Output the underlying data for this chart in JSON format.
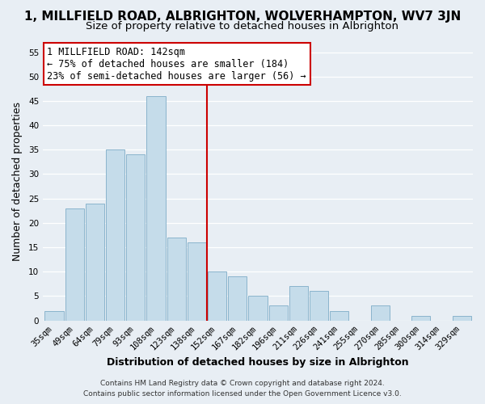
{
  "title": "1, MILLFIELD ROAD, ALBRIGHTON, WOLVERHAMPTON, WV7 3JN",
  "subtitle": "Size of property relative to detached houses in Albrighton",
  "xlabel": "Distribution of detached houses by size in Albrighton",
  "ylabel": "Number of detached properties",
  "footer_line1": "Contains HM Land Registry data © Crown copyright and database right 2024.",
  "footer_line2": "Contains public sector information licensed under the Open Government Licence v3.0.",
  "bar_labels": [
    "35sqm",
    "49sqm",
    "64sqm",
    "79sqm",
    "93sqm",
    "108sqm",
    "123sqm",
    "138sqm",
    "152sqm",
    "167sqm",
    "182sqm",
    "196sqm",
    "211sqm",
    "226sqm",
    "241sqm",
    "255sqm",
    "270sqm",
    "285sqm",
    "300sqm",
    "314sqm",
    "329sqm"
  ],
  "bar_values": [
    2,
    23,
    24,
    35,
    34,
    46,
    17,
    16,
    10,
    9,
    5,
    3,
    7,
    6,
    2,
    0,
    3,
    0,
    1,
    0,
    1
  ],
  "bar_color": "#c5dcea",
  "bar_edge_color": "#8ab4cc",
  "annotation_line_color": "#cc0000",
  "annotation_box_text_line1": "1 MILLFIELD ROAD: 142sqm",
  "annotation_box_text_line2": "← 75% of detached houses are smaller (184)",
  "annotation_box_text_line3": "23% of semi-detached houses are larger (56) →",
  "annotation_box_edge_color": "#cc0000",
  "annotation_box_bg_color": "#ffffff",
  "ylim": [
    0,
    57
  ],
  "yticks": [
    0,
    5,
    10,
    15,
    20,
    25,
    30,
    35,
    40,
    45,
    50,
    55
  ],
  "background_color": "#e8eef4",
  "grid_color": "#ffffff",
  "title_fontsize": 11,
  "subtitle_fontsize": 9.5,
  "axis_label_fontsize": 9,
  "tick_fontsize": 7.5,
  "footer_fontsize": 6.5
}
